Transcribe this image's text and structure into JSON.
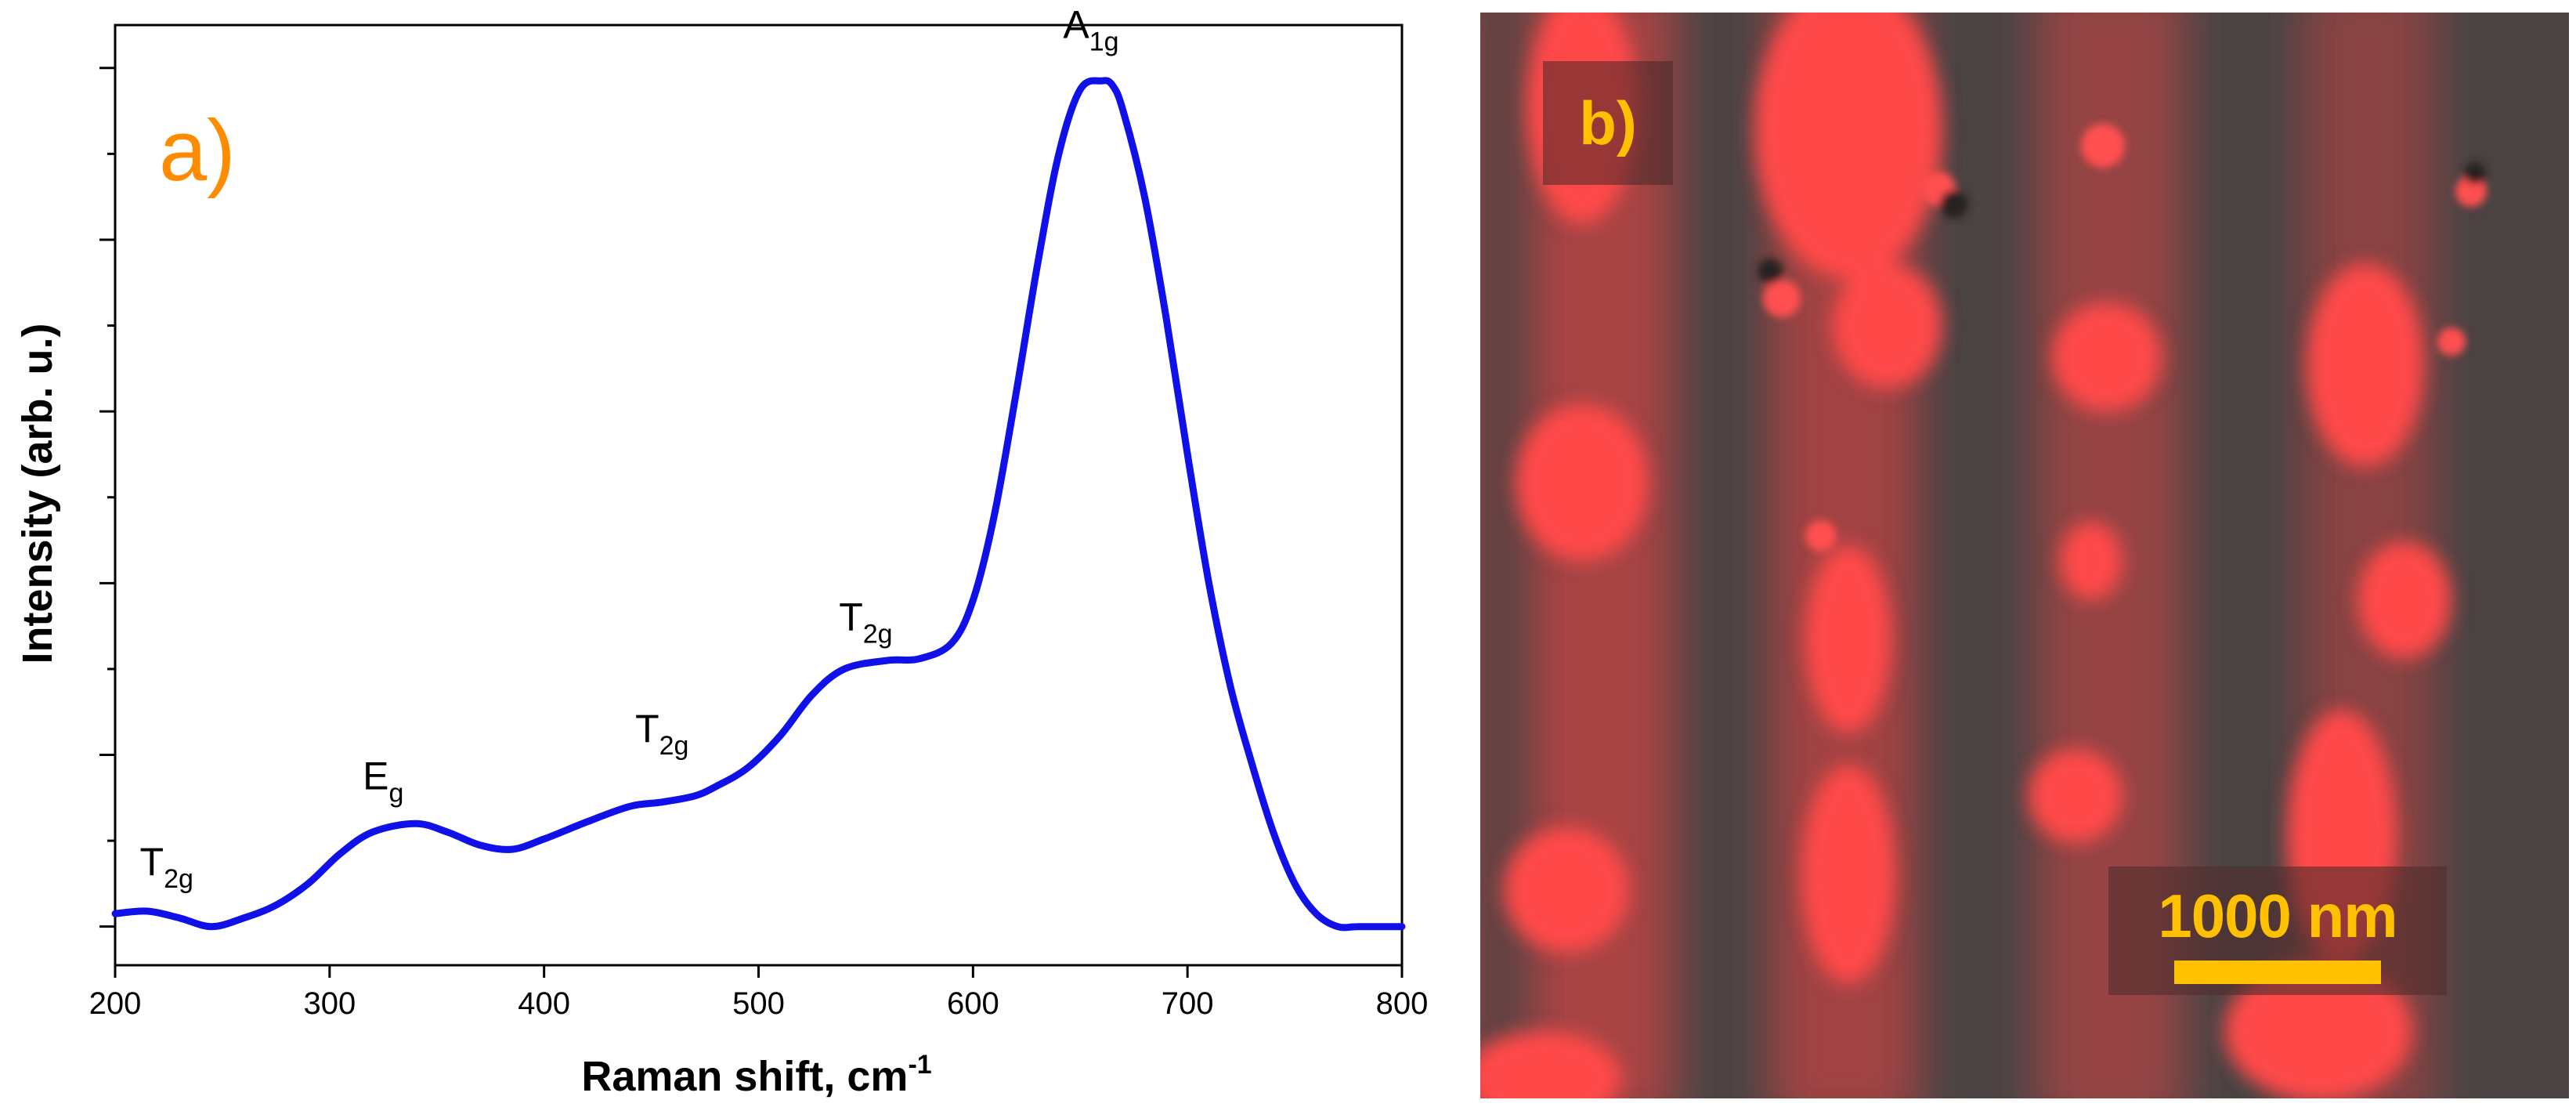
{
  "chart_data": {
    "type": "line",
    "panel_label": "a)",
    "xlabel": "Raman shift, cm",
    "xlabel_superscript": "-1",
    "ylabel": "Intensity (arb. u.)",
    "xlim": [
      200,
      800
    ],
    "ylim": [
      -0.045,
      1.05
    ],
    "x_ticks": [
      200,
      300,
      400,
      500,
      600,
      700,
      800
    ],
    "y_major_ticks": [
      0,
      0.2,
      0.4,
      0.6,
      0.8,
      1.0
    ],
    "y_minor_ticks": [
      0.1,
      0.3,
      0.5,
      0.7,
      0.9,
      1.1
    ],
    "y_tick_labels_shown": false,
    "series": [
      {
        "name": "Raman spectrum",
        "color": "#1010e8",
        "x": [
          200,
          215,
          230,
          245,
          260,
          275,
          290,
          305,
          320,
          340,
          355,
          370,
          385,
          400,
          420,
          440,
          455,
          470,
          480,
          495,
          510,
          525,
          540,
          560,
          575,
          590,
          600,
          610,
          620,
          630,
          640,
          650,
          660,
          665,
          670,
          680,
          690,
          700,
          710,
          720,
          730,
          740,
          750,
          760,
          770,
          780,
          800
        ],
        "y": [
          0.015,
          0.018,
          0.01,
          0.0,
          0.01,
          0.025,
          0.05,
          0.085,
          0.11,
          0.12,
          0.11,
          0.095,
          0.09,
          0.102,
          0.122,
          0.14,
          0.145,
          0.152,
          0.163,
          0.185,
          0.222,
          0.27,
          0.3,
          0.31,
          0.312,
          0.33,
          0.38,
          0.48,
          0.62,
          0.77,
          0.9,
          0.975,
          0.985,
          0.98,
          0.95,
          0.85,
          0.71,
          0.55,
          0.4,
          0.28,
          0.19,
          0.11,
          0.05,
          0.015,
          0.0,
          0.0,
          0.0
        ]
      }
    ],
    "annotations": [
      {
        "main": "T",
        "sub": "2g",
        "x": 224,
        "y": 0.06
      },
      {
        "main": "E",
        "sub": "g",
        "x": 325,
        "y": 0.16
      },
      {
        "main": "T",
        "sub": "2g",
        "x": 455,
        "y": 0.215
      },
      {
        "main": "T",
        "sub": "2g",
        "x": 550,
        "y": 0.345
      },
      {
        "main": "A",
        "sub": "1g",
        "x": 655,
        "y": 1.035
      }
    ]
  },
  "micrograph": {
    "panel_label": "b)",
    "scale_bar_label": "1000 nm",
    "base_color": "#4a4444",
    "signal_color": "#ff4848",
    "label_color": "#ffc000"
  }
}
